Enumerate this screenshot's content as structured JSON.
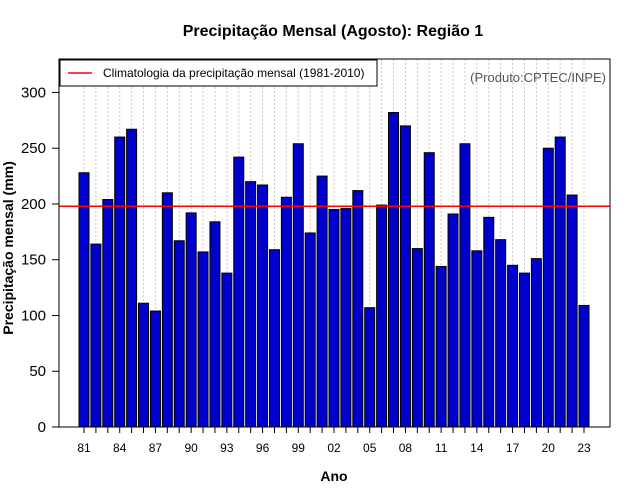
{
  "chart_data": {
    "type": "bar",
    "title": "Precipitação Mensal (Agosto): Região 1",
    "xlabel": "Ano",
    "ylabel": "Precipitação mensal (mm)",
    "product_note": "(Produto:CPTEC/INPE)",
    "ylim": [
      0,
      330
    ],
    "yticks": [
      0,
      50,
      100,
      150,
      200,
      250,
      300
    ],
    "categories": [
      "81",
      "82",
      "83",
      "84",
      "85",
      "86",
      "87",
      "88",
      "89",
      "90",
      "91",
      "92",
      "93",
      "94",
      "95",
      "96",
      "97",
      "98",
      "99",
      "00",
      "01",
      "02",
      "03",
      "04",
      "05",
      "06",
      "07",
      "08",
      "09",
      "10",
      "11",
      "12",
      "13",
      "14",
      "15",
      "16",
      "17",
      "18",
      "19",
      "20",
      "21",
      "22",
      "23"
    ],
    "xtick_labels": [
      "81",
      "84",
      "87",
      "90",
      "93",
      "96",
      "99",
      "02",
      "05",
      "08",
      "11",
      "14",
      "17",
      "20",
      "23"
    ],
    "values": [
      228,
      164,
      204,
      260,
      267,
      111,
      104,
      210,
      167,
      192,
      157,
      184,
      138,
      242,
      220,
      217,
      159,
      206,
      254,
      174,
      225,
      195,
      196,
      212,
      107,
      199,
      282,
      270,
      160,
      246,
      144,
      191,
      254,
      158,
      188,
      168,
      145,
      138,
      151,
      250,
      260,
      208,
      109
    ],
    "bar_color": "#0000cd",
    "reference_line": {
      "label": "Climatologia da precipitação mensal (1981-2010)",
      "value": 198,
      "color": "#ff0000"
    },
    "legend_position": "top-left",
    "grid": "vertical dotted"
  }
}
